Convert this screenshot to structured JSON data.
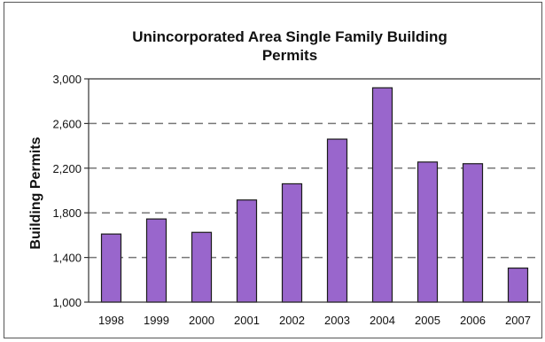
{
  "chart_data": {
    "type": "bar",
    "title_line1": "Unincorporated Area Single Family Building",
    "title_line2": "Permits",
    "xlabel": "",
    "ylabel": "Building Permits",
    "categories": [
      "1998",
      "1999",
      "2000",
      "2001",
      "2002",
      "2003",
      "2004",
      "2005",
      "2006",
      "2007"
    ],
    "values": [
      1610,
      1745,
      1625,
      1915,
      2060,
      2460,
      2920,
      2255,
      2240,
      1305
    ],
    "ylim": [
      1000,
      3000
    ],
    "yticks": [
      1000,
      1400,
      1800,
      2200,
      2600,
      3000
    ],
    "ytick_labels": [
      "1,000",
      "1,400",
      "1,800",
      "2,200",
      "2,600",
      "3,000"
    ],
    "bar_color": "#9966cc",
    "bar_edge_color": "#1a1a1a",
    "grid": "dashed horizontal",
    "legend": "none"
  }
}
